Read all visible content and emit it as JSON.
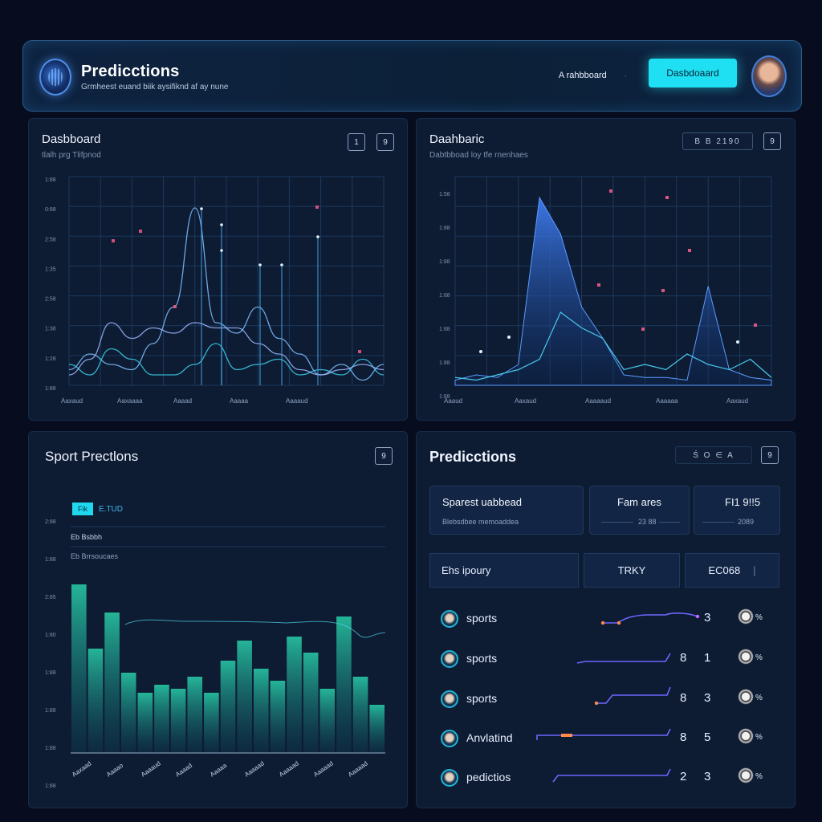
{
  "header": {
    "title": "Predicctions",
    "subtitle": "Grmheest euand biik aysifiknd af ay nune",
    "nav_link": "A rahbboard",
    "nav_link_extra": "·",
    "primary_button": "Dasbdoaard"
  },
  "panel1": {
    "title": "Dasbboard",
    "subtitle": "tlalh prg Tlifpnod",
    "btn_a": "1",
    "btn_b": "9",
    "chart_data": {
      "type": "line",
      "y_tick_labels": [
        "1:88",
        "0:88",
        "2:58",
        "1:35",
        "2:58",
        "1:38",
        "1:28",
        "1:88"
      ],
      "x_tick_labels": [
        "Aaxaud",
        "Aaxaaaa",
        "Aaaad",
        "Aaaaa",
        "Aaaaud"
      ],
      "series": [
        {
          "values": [
            3,
            6,
            4,
            3,
            8,
            15,
            34,
            12,
            10,
            15,
            9,
            6,
            2,
            4,
            1,
            4
          ]
        },
        {
          "values": [
            4,
            2,
            7,
            5,
            2,
            2,
            4,
            8,
            3,
            4,
            5,
            2,
            3,
            2,
            5,
            2
          ]
        },
        {
          "values": [
            2,
            5,
            12,
            9,
            11,
            10,
            12,
            11,
            11,
            8,
            6,
            3,
            2,
            3,
            4,
            3
          ]
        }
      ]
    }
  },
  "panel2": {
    "title": "Daahbaric",
    "subtitle": "Dabtbboad loy tfe rnenhaes",
    "pill": "B  B  2190",
    "btn_b": "9",
    "chart_data": {
      "type": "area",
      "y_tick_labels": [
        "1:58",
        "1:88",
        "1:88",
        "1:88",
        "1:88",
        "1:88",
        "1:88"
      ],
      "x_tick_labels": [
        "Aaaud",
        "Aaxaud",
        "Aaaaaud",
        "Aaaaaa",
        "Aaxaud"
      ],
      "series": [
        {
          "values": [
            2,
            4,
            3,
            8,
            72,
            58,
            30,
            18,
            4,
            3,
            3,
            2,
            38,
            6,
            3,
            2
          ]
        },
        {
          "values": [
            3,
            2,
            4,
            6,
            10,
            28,
            22,
            18,
            6,
            8,
            6,
            12,
            8,
            6,
            10,
            3
          ]
        }
      ]
    }
  },
  "panel3": {
    "title": "Sport Prectlons",
    "btn_b": "9",
    "badge": "Fik",
    "badge_label": "E.TUD",
    "legend_line1": "Eb Bsbbh",
    "legend_line2": "Eb Brrsoucaes",
    "chart_data": {
      "type": "bar",
      "y_tick_labels": [
        "2:88",
        "1:88",
        "2:85",
        "1:80",
        "1:88",
        "1:88",
        "1:88",
        "1:88"
      ],
      "x_tick_labels": [
        "Aaxaad",
        "Aaaao",
        "Aaaaud",
        "Aaaad",
        "Aaaaa",
        "Aaaaad",
        "Aaaaad",
        "Aaaaad",
        "Aaaaad"
      ],
      "values": [
        72,
        40,
        58,
        28,
        18,
        22,
        20,
        26,
        18,
        34,
        44,
        30,
        24,
        46,
        38,
        20,
        56,
        26,
        12
      ]
    }
  },
  "panel4": {
    "title": "Predicctions",
    "controls": "Ś  O  ∈  A",
    "btn_b": "9",
    "card1_title": "Sparest uabbead",
    "card1_sub": "Blebsdbee memoaddea",
    "card2_title": "Fam ares",
    "card2_sub": "23 88",
    "card3_title": "FI1 9!!5",
    "card3_sub": "2089",
    "filter1": "Ehs ipoury",
    "filter2": "TRKY",
    "filter3": "EC068",
    "rows": [
      {
        "label": "sports",
        "n1": "",
        "n2": "3",
        "pct": "%"
      },
      {
        "label": "sports",
        "n1": "8",
        "n2": "1",
        "pct": "%"
      },
      {
        "label": "sports",
        "n1": "8",
        "n2": "3",
        "pct": "%"
      },
      {
        "label": "Anvlatind",
        "n1": "8",
        "n2": "5",
        "pct": "%"
      },
      {
        "label": "pedictios",
        "n1": "2",
        "n2": "3",
        "pct": "%"
      }
    ]
  }
}
